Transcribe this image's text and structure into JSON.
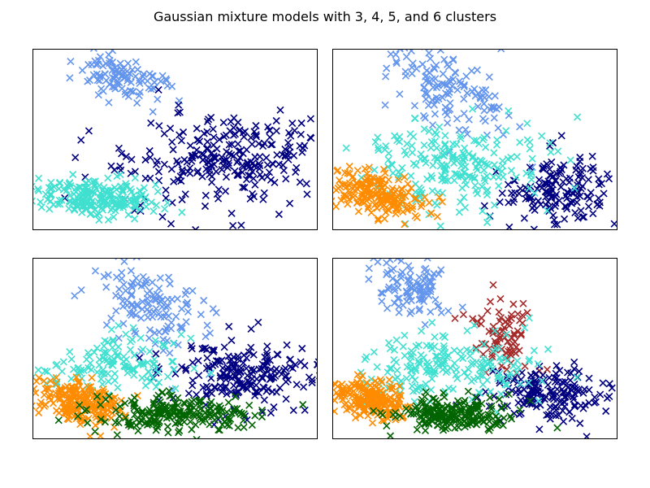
{
  "figure": {
    "title": "Gaussian mixture models with 3, 4, 5, and 6 clusters"
  },
  "chart_data": [
    {
      "type": "scatter",
      "marker": "x",
      "n_clusters": 3,
      "xlim": [
        0,
        100
      ],
      "ylim": [
        0,
        100
      ],
      "ticks": "none",
      "clusters": [
        {
          "color": "#6495ed",
          "center": [
            30,
            85
          ],
          "spread": [
            8,
            6
          ],
          "tilt": -0.35,
          "count": 110
        },
        {
          "color": "#000080",
          "center": [
            68,
            38
          ],
          "spread": [
            18,
            13
          ],
          "tilt": 0.0,
          "count": 270
        },
        {
          "color": "#40e0d0",
          "center": [
            22,
            18
          ],
          "spread": [
            11,
            5
          ],
          "tilt": -0.12,
          "count": 230
        }
      ]
    },
    {
      "type": "scatter",
      "marker": "x",
      "n_clusters": 4,
      "xlim": [
        0,
        100
      ],
      "ylim": [
        0,
        100
      ],
      "ticks": "none",
      "clusters": [
        {
          "color": "#6495ed",
          "center": [
            40,
            76
          ],
          "spread": [
            11,
            13
          ],
          "tilt": -0.7,
          "count": 140
        },
        {
          "color": "#000080",
          "center": [
            79,
            22
          ],
          "spread": [
            9,
            9
          ],
          "tilt": 0.0,
          "count": 160
        },
        {
          "color": "#40e0d0",
          "center": [
            42,
            35
          ],
          "spread": [
            16,
            13
          ],
          "tilt": 0.0,
          "count": 220
        },
        {
          "color": "#ff8c00",
          "center": [
            15,
            20
          ],
          "spread": [
            8,
            6
          ],
          "tilt": -0.4,
          "count": 200
        }
      ]
    },
    {
      "type": "scatter",
      "marker": "x",
      "n_clusters": 5,
      "xlim": [
        0,
        100
      ],
      "ylim": [
        0,
        100
      ],
      "ticks": "none",
      "clusters": [
        {
          "color": "#6495ed",
          "center": [
            42,
            74
          ],
          "spread": [
            11,
            13
          ],
          "tilt": -0.7,
          "count": 140
        },
        {
          "color": "#000080",
          "center": [
            75,
            35
          ],
          "spread": [
            14,
            9
          ],
          "tilt": 0.0,
          "count": 220
        },
        {
          "color": "#40e0d0",
          "center": [
            30,
            42
          ],
          "spread": [
            13,
            8
          ],
          "tilt": 0.0,
          "count": 130
        },
        {
          "color": "#ff8c00",
          "center": [
            17,
            20
          ],
          "spread": [
            8,
            6
          ],
          "tilt": -0.3,
          "count": 210
        },
        {
          "color": "#006400",
          "center": [
            50,
            14
          ],
          "spread": [
            14,
            5
          ],
          "tilt": 0.0,
          "count": 220
        }
      ]
    },
    {
      "type": "scatter",
      "marker": "x",
      "n_clusters": 6,
      "xlim": [
        0,
        100
      ],
      "ylim": [
        0,
        100
      ],
      "ticks": "none",
      "clusters": [
        {
          "color": "#6495ed",
          "center": [
            28,
            85
          ],
          "spread": [
            7,
            8
          ],
          "tilt": -0.4,
          "count": 100
        },
        {
          "color": "#a52a2a",
          "center": [
            60,
            57
          ],
          "spread": [
            6,
            11
          ],
          "tilt": -0.5,
          "count": 85
        },
        {
          "color": "#000080",
          "center": [
            76,
            25
          ],
          "spread": [
            10,
            8
          ],
          "tilt": 0.0,
          "count": 170
        },
        {
          "color": "#40e0d0",
          "center": [
            40,
            39
          ],
          "spread": [
            15,
            10
          ],
          "tilt": 0.0,
          "count": 190
        },
        {
          "color": "#ff8c00",
          "center": [
            14,
            21
          ],
          "spread": [
            6,
            6
          ],
          "tilt": -0.3,
          "count": 190
        },
        {
          "color": "#006400",
          "center": [
            41,
            14
          ],
          "spread": [
            10,
            5
          ],
          "tilt": 0.0,
          "count": 210
        }
      ]
    }
  ]
}
